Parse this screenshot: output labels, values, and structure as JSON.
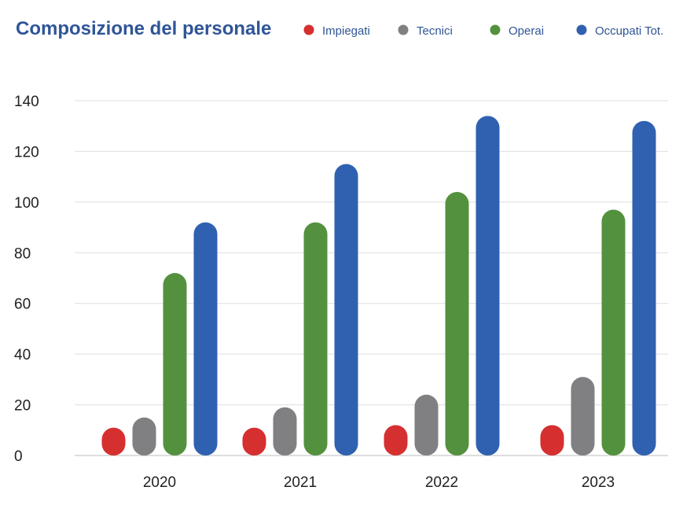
{
  "chart_data": {
    "type": "bar",
    "title": "Composizione del personale",
    "categories": [
      "2020",
      "2021",
      "2022",
      "2023"
    ],
    "series": [
      {
        "name": "Impiegati",
        "color": "#d62f2f",
        "values": [
          11,
          11,
          12,
          12
        ]
      },
      {
        "name": "Tecnici",
        "color": "#808083",
        "values": [
          15,
          19,
          24,
          31
        ]
      },
      {
        "name": "Operai",
        "color": "#54913f",
        "values": [
          72,
          92,
          104,
          97
        ]
      },
      {
        "name": "Occupati Tot.",
        "color": "#2f61b0",
        "values": [
          92,
          115,
          134,
          132
        ]
      }
    ],
    "y_ticks": [
      "0",
      "20",
      "40",
      "60",
      "80",
      "100",
      "120",
      "140"
    ],
    "ylim": [
      0,
      140
    ],
    "grid": true,
    "legend_position": "top-right",
    "title_color": "#2f5597"
  }
}
